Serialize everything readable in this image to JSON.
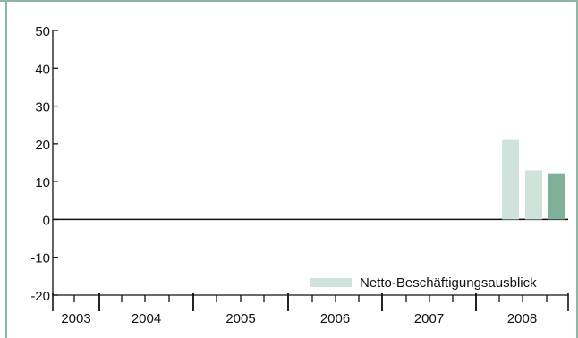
{
  "colors": {
    "frame": "#8fb5a5",
    "bar_light": "#cfe3db",
    "bar_dark": "#80b09a",
    "axis": "#111111"
  },
  "chart_data": {
    "type": "bar",
    "years": [
      "2003",
      "2004",
      "2005",
      "2006",
      "2007",
      "2008"
    ],
    "y_ticks": [
      50,
      40,
      30,
      20,
      10,
      0,
      -10,
      -20
    ],
    "ylim": [
      -20,
      50
    ],
    "grid": false,
    "legend": {
      "label": "Netto-Beschäftigungsausblick",
      "placement": "bottom-right"
    },
    "bars": [
      {
        "year": "2008",
        "quarter": 1,
        "value": 21,
        "shade": "light"
      },
      {
        "year": "2008",
        "quarter": 2,
        "value": 13,
        "shade": "light"
      },
      {
        "year": "2008",
        "quarter": 3,
        "value": 12,
        "shade": "dark"
      }
    ]
  }
}
